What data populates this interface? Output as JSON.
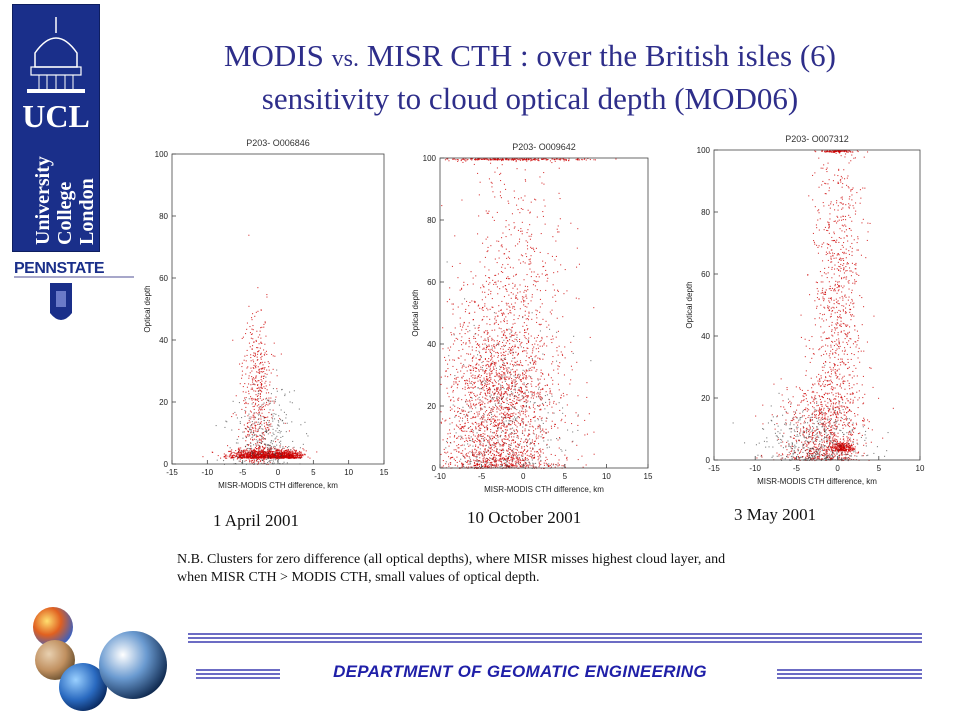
{
  "slide": {
    "title_line1_a": "MODIS ",
    "title_line1_vs": "vs.",
    "title_line1_b": " MISR CTH : over the British isles (6)",
    "title_line2": "sensitivity to cloud optical depth (MOD06)",
    "note_line1": "N.B. Clusters for zero difference (all optical depths), where MISR misses highest cloud layer, and",
    "note_line2": "when MISR CTH > MODIS CTH, small values of optical depth.",
    "department": "DEPARTMENT  OF  GEOMATIC  ENGINEERING",
    "ucl_logo_text": [
      "UCL",
      "University",
      "College",
      "London"
    ],
    "penn_logo_text": "PENNSTATE"
  },
  "colors": {
    "title": "#2e2e8a",
    "department": "#1f1fa8",
    "footer_line": "#3b3bb0",
    "ucl_blue": "#1a2f8a",
    "point_red": "#cc0000",
    "point_dark": "#333333"
  },
  "chart_data": [
    {
      "type": "scatter",
      "title": "P203- O006846",
      "date": "1 April 2001",
      "xlabel": "MISR-MODIS CTH difference, km",
      "ylabel": "Optical depth",
      "xlim": [
        -15,
        15
      ],
      "ylim": [
        0,
        100
      ],
      "xticks": [
        "-15",
        "-10",
        "-5",
        "0",
        "5",
        "10",
        "15"
      ],
      "yticks": [
        "0",
        "20",
        "40",
        "60",
        "80",
        "100"
      ],
      "clusters": [
        {
          "x_center": -3,
          "x_spread": 2.2,
          "y_center": 2,
          "y_spread": 1.5,
          "n": 700,
          "color": "red"
        },
        {
          "x_center": 1,
          "x_spread": 1.3,
          "y_center": 2,
          "y_spread": 1.2,
          "n": 500,
          "color": "red"
        },
        {
          "x_center": -3,
          "x_spread": 1.2,
          "y_center": 20,
          "y_spread": 15,
          "n": 500,
          "color": "red"
        },
        {
          "x_center": -2,
          "x_spread": 2.5,
          "y_center": 8,
          "y_spread": 8,
          "n": 300,
          "color": "dark"
        }
      ]
    },
    {
      "type": "scatter",
      "title": "P203- O009642",
      "date": "10 October 2001",
      "xlabel": "MISR-MODIS CTH difference, km",
      "ylabel": "Optical depth",
      "xlim": [
        -10,
        15
      ],
      "ylim": [
        0,
        100
      ],
      "xticks": [
        "-10",
        "-5",
        "0",
        "5",
        "10",
        "15"
      ],
      "yticks": [
        "0",
        "20",
        "40",
        "60",
        "80",
        "100"
      ],
      "clusters": [
        {
          "x_center": -3,
          "x_spread": 3.5,
          "y_center": 18,
          "y_spread": 18,
          "n": 2200,
          "color": "red"
        },
        {
          "x_center": -1,
          "x_spread": 3,
          "y_center": 55,
          "y_spread": 25,
          "n": 500,
          "color": "red"
        },
        {
          "x_center": -2,
          "x_spread": 5,
          "y_center": 100,
          "y_spread": 0.4,
          "n": 250,
          "color": "red"
        },
        {
          "x_center": -2,
          "x_spread": 3.5,
          "y_center": 15,
          "y_spread": 15,
          "n": 400,
          "color": "dark"
        }
      ]
    },
    {
      "type": "scatter",
      "title": "P203- O007312",
      "date": "3 May 2001",
      "xlabel": "MISR-MODIS CTH difference, km",
      "ylabel": "Optical depth",
      "xlim": [
        -15,
        10
      ],
      "ylim": [
        0,
        100
      ],
      "xticks": [
        "-15",
        "-10",
        "-5",
        "0",
        "5",
        "10"
      ],
      "yticks": [
        "0",
        "20",
        "40",
        "60",
        "80",
        "100"
      ],
      "clusters": [
        {
          "x_center": 0,
          "x_spread": 1.5,
          "y_center": 50,
          "y_spread": 30,
          "n": 900,
          "color": "red"
        },
        {
          "x_center": -2,
          "x_spread": 2.5,
          "y_center": 10,
          "y_spread": 10,
          "n": 700,
          "color": "red"
        },
        {
          "x_center": 0.5,
          "x_spread": 0.8,
          "y_center": 3,
          "y_spread": 1.5,
          "n": 250,
          "color": "red"
        },
        {
          "x_center": 0,
          "x_spread": 0.8,
          "y_center": 100,
          "y_spread": 0.4,
          "n": 80,
          "color": "red"
        },
        {
          "x_center": -3,
          "x_spread": 3,
          "y_center": 6,
          "y_spread": 6,
          "n": 400,
          "color": "dark"
        }
      ]
    }
  ]
}
